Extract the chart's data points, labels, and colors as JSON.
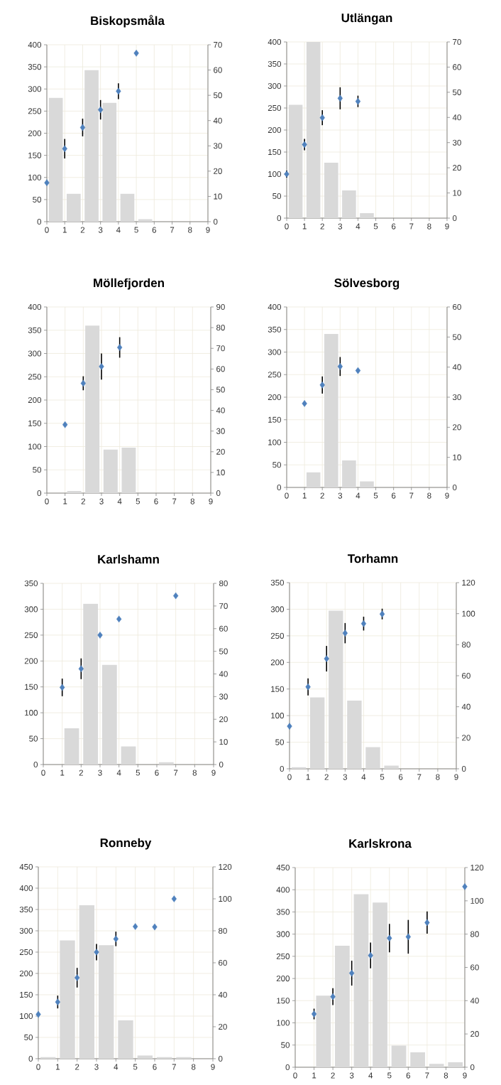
{
  "chart_data": [
    {
      "type": "bar",
      "title": "Biskopsmåla",
      "grid": true,
      "marker": "diamond",
      "xlim": [
        0,
        9
      ],
      "xticks": [
        0,
        1,
        2,
        3,
        4,
        5,
        6,
        7,
        8,
        9
      ],
      "ylim": [
        0,
        400
      ],
      "yticks": [
        0,
        50,
        100,
        150,
        200,
        250,
        300,
        350,
        400
      ],
      "y2lim": [
        0,
        70
      ],
      "y2ticks": [
        0,
        10,
        20,
        30,
        40,
        50,
        60,
        70
      ],
      "series": [
        {
          "axis": "y2",
          "color": "#d9d9d9",
          "x": [
            0.5,
            1.5,
            2.5,
            3.5,
            4.5,
            5.5
          ],
          "values": [
            49,
            11,
            60,
            47,
            11,
            1
          ]
        },
        {
          "type": "scatter",
          "color": "#4f81bd",
          "x": [
            0,
            1,
            2,
            3,
            4,
            5
          ],
          "values": [
            88,
            165,
            213,
            253,
            295,
            381
          ],
          "errors": [
            null,
            22,
            20,
            22,
            18,
            null
          ]
        }
      ]
    },
    {
      "type": "bar",
      "title": "Utlängan",
      "grid": true,
      "marker": "diamond",
      "xlim": [
        0,
        9
      ],
      "xticks": [
        0,
        1,
        2,
        3,
        4,
        5,
        6,
        7,
        8,
        9
      ],
      "ylim": [
        0,
        400
      ],
      "yticks": [
        0,
        50,
        100,
        150,
        200,
        250,
        300,
        350,
        400
      ],
      "y2lim": [
        0,
        70
      ],
      "y2ticks": [
        0,
        10,
        20,
        30,
        40,
        50,
        60,
        70
      ],
      "series": [
        {
          "axis": "y2",
          "color": "#d9d9d9",
          "x": [
            0.5,
            1.5,
            2.5,
            3.5,
            4.5
          ],
          "values": [
            45,
            70,
            22,
            11,
            2
          ]
        },
        {
          "type": "scatter",
          "color": "#4f81bd",
          "x": [
            0,
            1,
            2,
            3,
            4
          ],
          "values": [
            100,
            167,
            228,
            272,
            265
          ],
          "errors": [
            8,
            13,
            17,
            25,
            13
          ]
        }
      ]
    },
    {
      "type": "bar",
      "title": "Möllefjorden",
      "grid": true,
      "marker": "diamond",
      "xlim": [
        0,
        9
      ],
      "xticks": [
        0,
        1,
        2,
        3,
        4,
        5,
        6,
        7,
        8,
        9
      ],
      "ylim": [
        0,
        400
      ],
      "yticks": [
        0,
        50,
        100,
        150,
        200,
        250,
        300,
        350,
        400
      ],
      "y2lim": [
        0,
        90
      ],
      "y2ticks": [
        0,
        10,
        20,
        30,
        40,
        50,
        60,
        70,
        80,
        90
      ],
      "series": [
        {
          "axis": "y2",
          "color": "#d9d9d9",
          "x": [
            1.5,
            2.5,
            3.5,
            4.5
          ],
          "values": [
            1,
            81,
            21,
            22
          ]
        },
        {
          "type": "scatter",
          "color": "#4f81bd",
          "x": [
            1,
            2,
            3,
            4
          ],
          "values": [
            147,
            236,
            272,
            313
          ],
          "errors": [
            null,
            15,
            28,
            22
          ]
        }
      ]
    },
    {
      "type": "bar",
      "title": "Sölvesborg",
      "grid": true,
      "marker": "diamond",
      "xlim": [
        0,
        9
      ],
      "xticks": [
        0,
        1,
        2,
        3,
        4,
        5,
        6,
        7,
        8,
        9
      ],
      "ylim": [
        0,
        400
      ],
      "yticks": [
        0,
        50,
        100,
        150,
        200,
        250,
        300,
        350,
        400
      ],
      "y2lim": [
        0,
        60
      ],
      "y2ticks": [
        0,
        10,
        20,
        30,
        40,
        50,
        60
      ],
      "series": [
        {
          "axis": "y2",
          "color": "#d9d9d9",
          "x": [
            1.5,
            2.5,
            3.5,
            4.5
          ],
          "values": [
            5,
            51,
            9,
            2
          ]
        },
        {
          "type": "scatter",
          "color": "#4f81bd",
          "x": [
            1,
            2,
            3,
            4
          ],
          "values": [
            186,
            227,
            268,
            259
          ],
          "errors": [
            null,
            19,
            21,
            null
          ]
        }
      ]
    },
    {
      "type": "bar",
      "title": "Karlshamn",
      "grid": true,
      "marker": "diamond",
      "xlim": [
        0,
        9
      ],
      "xticks": [
        0,
        1,
        2,
        3,
        4,
        5,
        6,
        7,
        8,
        9
      ],
      "ylim": [
        0,
        350
      ],
      "yticks": [
        0,
        50,
        100,
        150,
        200,
        250,
        300,
        350
      ],
      "y2lim": [
        0,
        80
      ],
      "y2ticks": [
        0,
        10,
        20,
        30,
        40,
        50,
        60,
        70,
        80
      ],
      "series": [
        {
          "axis": "y2",
          "color": "#d9d9d9",
          "x": [
            1.5,
            2.5,
            3.5,
            4.5,
            6.5
          ],
          "values": [
            16,
            71,
            44,
            8,
            1
          ]
        },
        {
          "type": "scatter",
          "color": "#4f81bd",
          "x": [
            1,
            2,
            3,
            4,
            7
          ],
          "values": [
            149,
            185,
            250,
            281,
            326
          ],
          "errors": [
            17,
            20,
            null,
            null,
            null
          ]
        }
      ]
    },
    {
      "type": "bar",
      "title": "Torhamn",
      "grid": true,
      "marker": "diamond",
      "xlim": [
        0,
        9
      ],
      "xticks": [
        0,
        1,
        2,
        3,
        4,
        5,
        6,
        7,
        8,
        9
      ],
      "ylim": [
        0,
        350
      ],
      "yticks": [
        0,
        50,
        100,
        150,
        200,
        250,
        300,
        350
      ],
      "y2lim": [
        0,
        120
      ],
      "y2ticks": [
        0,
        20,
        40,
        60,
        80,
        100,
        120
      ],
      "series": [
        {
          "axis": "y2",
          "color": "#d9d9d9",
          "x": [
            0.5,
            1.5,
            2.5,
            3.5,
            4.5,
            5.5
          ],
          "values": [
            1,
            46,
            102,
            44,
            14,
            2
          ]
        },
        {
          "type": "scatter",
          "color": "#4f81bd",
          "x": [
            0,
            1,
            2,
            3,
            4,
            5
          ],
          "values": [
            80,
            154,
            207,
            255,
            273,
            291
          ],
          "errors": [
            null,
            16,
            24,
            19,
            13,
            10
          ]
        }
      ]
    },
    {
      "type": "bar",
      "title": "Ronneby",
      "grid": true,
      "marker": "diamond",
      "xlim": [
        0,
        9
      ],
      "xticks": [
        0,
        1,
        2,
        3,
        4,
        5,
        6,
        7,
        8,
        9
      ],
      "ylim": [
        0,
        450
      ],
      "yticks": [
        0,
        50,
        100,
        150,
        200,
        250,
        300,
        350,
        400,
        450
      ],
      "y2lim": [
        0,
        120
      ],
      "y2ticks": [
        0,
        20,
        40,
        60,
        80,
        100,
        120
      ],
      "series": [
        {
          "axis": "y2",
          "color": "#d9d9d9",
          "x": [
            0.5,
            1.5,
            2.5,
            3.5,
            4.5,
            5.5,
            6.5,
            7.5
          ],
          "values": [
            1,
            74,
            96,
            71,
            24,
            2,
            1,
            1
          ]
        },
        {
          "type": "scatter",
          "color": "#4f81bd",
          "x": [
            0,
            1,
            2,
            3,
            4,
            5,
            6,
            7
          ],
          "values": [
            104,
            133,
            190,
            250,
            281,
            310,
            309,
            375
          ],
          "errors": [
            null,
            15,
            23,
            19,
            17,
            null,
            null,
            null
          ]
        }
      ]
    },
    {
      "type": "bar",
      "title": "Karlskrona",
      "grid": true,
      "marker": "diamond",
      "xlim": [
        0,
        9
      ],
      "xticks": [
        0,
        1,
        2,
        3,
        4,
        5,
        6,
        7,
        8,
        9
      ],
      "ylim": [
        0,
        450
      ],
      "yticks": [
        0,
        50,
        100,
        150,
        200,
        250,
        300,
        350,
        400,
        450
      ],
      "y2lim": [
        0,
        120
      ],
      "y2ticks": [
        0,
        20,
        40,
        60,
        80,
        100,
        120
      ],
      "series": [
        {
          "axis": "y2",
          "color": "#d9d9d9",
          "x": [
            1.5,
            2.5,
            3.5,
            4.5,
            5.5,
            6.5,
            7.5,
            8.5
          ],
          "values": [
            43,
            73,
            104,
            99,
            13,
            9,
            2,
            3
          ]
        },
        {
          "type": "scatter",
          "color": "#4f81bd",
          "x": [
            1,
            2,
            3,
            4,
            5,
            6,
            7,
            9
          ],
          "values": [
            120,
            159,
            212,
            252,
            291,
            294,
            326,
            407
          ],
          "errors": [
            12,
            19,
            28,
            29,
            32,
            38,
            25,
            null
          ]
        }
      ]
    }
  ]
}
